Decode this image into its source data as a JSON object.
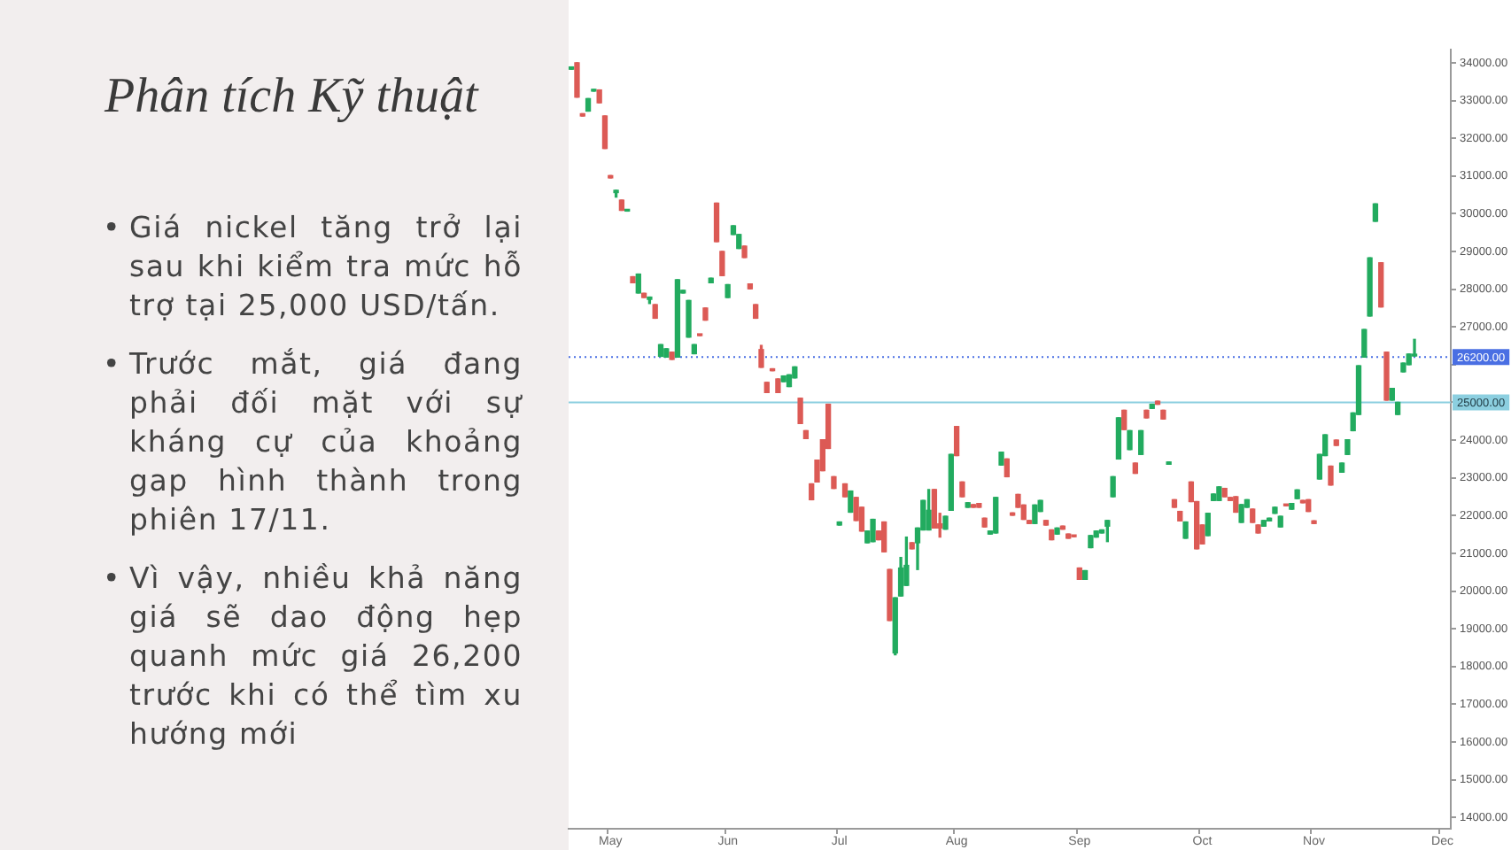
{
  "chart_data": {
    "type": "candlestick",
    "title": "Phân tích Kỹ thuật",
    "annotations": [
      "• Giá nickel tăng trở lại sau khi kiểm tra mức hỗ trợ tại 25,000 USD/tấn.",
      "• Trước mắt, giá đang phải đối mặt với sự kháng cự của khoảng gap hình thành trong phiên 17/11.",
      "• Vì vậy, nhiều khả năng giá sẽ dao động hẹp quanh mức giá 26,200 trước khi có thể tìm xu hướng mới"
    ],
    "categories": [
      null,
      null,
      null,
      null,
      null,
      null,
      null,
      "May",
      null,
      null,
      null,
      null,
      null,
      null,
      null,
      null,
      null,
      null,
      null,
      null,
      null,
      null,
      null,
      null,
      null,
      null,
      null,
      null,
      "Jun",
      null,
      null,
      null,
      null,
      null,
      null,
      null,
      null,
      null,
      null,
      null,
      null,
      null,
      null,
      null,
      null,
      null,
      null,
      null,
      "Jul",
      null,
      null,
      null,
      null,
      null,
      null,
      null,
      null,
      null,
      null,
      null,
      null,
      null,
      null,
      null,
      null,
      null,
      null,
      null,
      null,
      "Aug",
      null,
      null,
      null,
      null,
      null,
      null,
      null,
      null,
      null,
      null,
      null,
      null,
      null,
      null,
      null,
      null,
      null,
      null,
      null,
      null,
      null,
      "Sep",
      null,
      null,
      null,
      null,
      null,
      null,
      null,
      null,
      null,
      null,
      null,
      null,
      null,
      null,
      null,
      null,
      null,
      null,
      null,
      null,
      null,
      "Oct",
      null,
      null,
      null,
      null,
      null,
      null,
      null,
      null,
      null,
      null,
      null,
      null,
      null,
      null,
      null,
      null,
      null,
      null,
      null,
      "Nov",
      null,
      null,
      null,
      null,
      null,
      null,
      null,
      null,
      null,
      null,
      null,
      null,
      null,
      null,
      null,
      null,
      null,
      null,
      null,
      null,
      null,
      null,
      "Dec",
      null
    ],
    "ohlc": [
      [
        33830,
        33890,
        33830,
        33890
      ],
      [
        34000,
        34000,
        33090,
        33090
      ],
      [
        32650,
        32650,
        32590,
        32590
      ],
      [
        32720,
        33050,
        32720,
        33050
      ],
      [
        33250,
        33290,
        33250,
        33290
      ],
      [
        33280,
        33280,
        32940,
        32940
      ],
      [
        32590,
        32590,
        31730,
        31730
      ],
      [
        31010,
        31010,
        30950,
        30950
      ],
      [
        30560,
        30620,
        30440,
        30620
      ],
      [
        30360,
        30360,
        30090,
        30090
      ],
      [
        30070,
        30090,
        30070,
        30090
      ],
      [
        28330,
        28330,
        28170,
        28170
      ],
      [
        27900,
        28400,
        27900,
        28400
      ],
      [
        27890,
        27890,
        27780,
        27780
      ],
      [
        27730,
        27790,
        27620,
        27790
      ],
      [
        27590,
        27590,
        27230,
        27230
      ],
      [
        26220,
        26530,
        26220,
        26530
      ],
      [
        26200,
        26420,
        26200,
        26420
      ],
      [
        26330,
        26330,
        26140,
        26140
      ],
      [
        26200,
        28250,
        26200,
        28250
      ],
      [
        27900,
        27970,
        27900,
        27970
      ],
      [
        26730,
        27700,
        26730,
        27700
      ],
      [
        26290,
        26530,
        26290,
        26530
      ],
      [
        26800,
        26800,
        26770,
        26770
      ],
      [
        27500,
        27500,
        27180,
        27180
      ],
      [
        28170,
        28290,
        28170,
        28290
      ],
      [
        30280,
        30280,
        29260,
        29260
      ],
      [
        29000,
        29000,
        28360,
        28360
      ],
      [
        27780,
        28120,
        27780,
        28120
      ],
      [
        29450,
        29680,
        29450,
        29680
      ],
      [
        29080,
        29450,
        29080,
        29450
      ],
      [
        29140,
        29140,
        28840,
        28840
      ],
      [
        28140,
        28140,
        28010,
        28010
      ],
      [
        27590,
        27590,
        27230,
        27230
      ],
      [
        26400,
        26510,
        25930,
        25930
      ],
      [
        25530,
        25530,
        25260,
        25260
      ],
      [
        25890,
        25890,
        25840,
        25840
      ],
      [
        25620,
        25620,
        25260,
        25260
      ],
      [
        25550,
        25700,
        25550,
        25700
      ],
      [
        25420,
        25730,
        25420,
        25730
      ],
      [
        25650,
        25940,
        25650,
        25940
      ],
      [
        25110,
        25110,
        24440,
        24440
      ],
      [
        24250,
        24250,
        24040,
        24040
      ],
      [
        22840,
        22840,
        22420,
        22420
      ],
      [
        23470,
        23470,
        22890,
        22890
      ],
      [
        24010,
        24010,
        23190,
        23190
      ],
      [
        24950,
        24950,
        23780,
        23780
      ],
      [
        23030,
        23030,
        22720,
        22720
      ],
      [
        21750,
        21830,
        21750,
        21830
      ],
      [
        22840,
        22840,
        22500,
        22500
      ],
      [
        22090,
        22650,
        22090,
        22650
      ],
      [
        22480,
        22480,
        21870,
        21870
      ],
      [
        22220,
        22220,
        21590,
        21590
      ],
      [
        21280,
        21590,
        21280,
        21590
      ],
      [
        21310,
        21900,
        21310,
        21900
      ],
      [
        21590,
        21590,
        21360,
        21360
      ],
      [
        21830,
        21830,
        21040,
        21040
      ],
      [
        20570,
        20570,
        19220,
        19220
      ],
      [
        18360,
        19820,
        18310,
        19820
      ],
      [
        19870,
        20890,
        19870,
        20610
      ],
      [
        20150,
        21430,
        20150,
        20680
      ],
      [
        21280,
        21280,
        21120,
        21120
      ],
      [
        21280,
        21670,
        20570,
        21670
      ],
      [
        21620,
        22400,
        21620,
        22400
      ],
      [
        21620,
        22690,
        21620,
        22140
      ],
      [
        22690,
        22690,
        21670,
        21670
      ],
      [
        21780,
        22060,
        21430,
        21670
      ],
      [
        21640,
        21980,
        21640,
        21980
      ],
      [
        22140,
        23620,
        22140,
        23620
      ],
      [
        24360,
        24360,
        23590,
        23590
      ],
      [
        22890,
        22890,
        22500,
        22500
      ],
      [
        22220,
        22340,
        22220,
        22340
      ],
      [
        22290,
        22290,
        22220,
        22220
      ],
      [
        22320,
        22320,
        22220,
        22220
      ],
      [
        21930,
        21930,
        21700,
        21700
      ],
      [
        21510,
        21590,
        21510,
        21590
      ],
      [
        21540,
        22480,
        21540,
        22480
      ],
      [
        23340,
        23680,
        23340,
        23680
      ],
      [
        23500,
        23500,
        23030,
        23030
      ],
      [
        22070,
        22070,
        22010,
        22010
      ],
      [
        22560,
        22560,
        22220,
        22220
      ],
      [
        22280,
        22280,
        21900,
        21900
      ],
      [
        21870,
        21870,
        21790,
        21790
      ],
      [
        21790,
        22280,
        21790,
        22280
      ],
      [
        22110,
        22400,
        22110,
        22400
      ],
      [
        21870,
        21870,
        21750,
        21750
      ],
      [
        21620,
        21620,
        21360,
        21360
      ],
      [
        21510,
        21670,
        21510,
        21670
      ],
      [
        21720,
        21720,
        21640,
        21640
      ],
      [
        21510,
        21510,
        21400,
        21400
      ],
      [
        21460,
        21460,
        21440,
        21440
      ],
      [
        20610,
        20610,
        20310,
        20310
      ],
      [
        20310,
        20540,
        20310,
        20540
      ],
      [
        21150,
        21470,
        21150,
        21470
      ],
      [
        21430,
        21590,
        21430,
        21590
      ],
      [
        21540,
        21620,
        21540,
        21620
      ],
      [
        21720,
        21870,
        21310,
        21870
      ],
      [
        22500,
        23030,
        22500,
        23030
      ],
      [
        23500,
        24590,
        23500,
        24590
      ],
      [
        24790,
        24790,
        24280,
        24280
      ],
      [
        23750,
        24250,
        23750,
        24250
      ],
      [
        23390,
        23390,
        23120,
        23120
      ],
      [
        23620,
        24250,
        23620,
        24250
      ],
      [
        24790,
        24790,
        24590,
        24590
      ],
      [
        24840,
        24950,
        24840,
        24950
      ],
      [
        25030,
        25030,
        24950,
        24950
      ],
      [
        24790,
        24790,
        24560,
        24560
      ],
      [
        23360,
        23420,
        23360,
        23420
      ],
      [
        22420,
        22420,
        22220,
        22220
      ],
      [
        22110,
        22110,
        21860,
        21860
      ],
      [
        21400,
        21830,
        21400,
        21830
      ],
      [
        22890,
        22890,
        22370,
        22370
      ],
      [
        22370,
        22370,
        21120,
        21120
      ],
      [
        21750,
        21750,
        21250,
        21250
      ],
      [
        21470,
        22060,
        21470,
        22060
      ],
      [
        22400,
        22570,
        22400,
        22570
      ],
      [
        22400,
        22760,
        22400,
        22760
      ],
      [
        22720,
        22720,
        22500,
        22500
      ],
      [
        22480,
        22480,
        22400,
        22400
      ],
      [
        22500,
        22500,
        22090,
        22090
      ],
      [
        21820,
        22290,
        21820,
        22290
      ],
      [
        22220,
        22420,
        22220,
        22420
      ],
      [
        22170,
        22170,
        21820,
        21820
      ],
      [
        21750,
        21750,
        21540,
        21540
      ],
      [
        21720,
        21870,
        21720,
        21870
      ],
      [
        21860,
        21930,
        21860,
        21930
      ],
      [
        22060,
        22220,
        22060,
        22220
      ],
      [
        21700,
        21980,
        21700,
        21980
      ],
      [
        22290,
        22290,
        22260,
        22260
      ],
      [
        22170,
        22320,
        22170,
        22320
      ],
      [
        22450,
        22680,
        22450,
        22680
      ],
      [
        22400,
        22400,
        22340,
        22340
      ],
      [
        22420,
        22420,
        22110,
        22110
      ],
      [
        21860,
        21860,
        21790,
        21790
      ],
      [
        22970,
        23620,
        22970,
        23620
      ],
      [
        23590,
        24140,
        23590,
        24140
      ],
      [
        23310,
        23310,
        22810,
        22810
      ],
      [
        24000,
        24000,
        23860,
        23860
      ],
      [
        23150,
        23390,
        23150,
        23390
      ],
      [
        23620,
        24010,
        23620,
        24010
      ],
      [
        24250,
        24720,
        24250,
        24720
      ],
      [
        24680,
        25970,
        24680,
        25970
      ],
      [
        26200,
        26930,
        26200,
        26930
      ],
      [
        27290,
        28830,
        27290,
        28830
      ],
      [
        29800,
        30260,
        29800,
        30260
      ],
      [
        28700,
        28700,
        27530,
        27530
      ],
      [
        26330,
        26330,
        25060,
        25060
      ],
      [
        25060,
        25370,
        25060,
        25370
      ],
      [
        24680,
        25000,
        24680,
        25000
      ],
      [
        25810,
        26040,
        25810,
        26040
      ],
      [
        26000,
        26280,
        26000,
        26280
      ],
      [
        26230,
        26670,
        26230,
        26250
      ],
      null,
      null,
      null,
      null,
      null,
      null
    ],
    "colors": [
      "#22ab5f",
      "#dc5a55",
      "#dc5a55",
      "#22ab5f",
      "#22ab5f",
      "#dc5a55",
      "#dc5a55",
      "#dc5a55",
      "#22ab5f",
      "#dc5a55",
      "#22ab5f",
      "#dc5a55",
      "#22ab5f",
      "#dc5a55",
      "#22ab5f",
      "#dc5a55",
      "#22ab5f",
      "#22ab5f",
      "#dc5a55",
      "#22ab5f",
      "#22ab5f",
      "#22ab5f",
      "#22ab5f",
      "#dc5a55",
      "#dc5a55",
      "#22ab5f",
      "#dc5a55",
      "#dc5a55",
      "#22ab5f",
      "#22ab5f",
      "#22ab5f",
      "#dc5a55",
      "#dc5a55",
      "#dc5a55",
      "#dc5a55",
      "#dc5a55",
      "#dc5a55",
      "#dc5a55",
      "#22ab5f",
      "#22ab5f",
      "#22ab5f",
      "#dc5a55",
      "#dc5a55",
      "#dc5a55",
      "#dc5a55",
      "#dc5a55",
      "#dc5a55",
      "#dc5a55",
      "#22ab5f",
      "#dc5a55",
      "#22ab5f",
      "#dc5a55",
      "#dc5a55",
      "#22ab5f",
      "#22ab5f",
      "#dc5a55",
      "#dc5a55",
      "#dc5a55",
      "#22ab5f",
      "#22ab5f",
      "#22ab5f",
      "#dc5a55",
      "#22ab5f",
      "#22ab5f",
      "#22ab5f",
      "#dc5a55",
      "#dc5a55",
      "#22ab5f",
      "#22ab5f",
      "#dc5a55",
      "#dc5a55",
      "#22ab5f",
      "#dc5a55",
      "#dc5a55",
      "#dc5a55",
      "#22ab5f",
      "#22ab5f",
      "#22ab5f",
      "#dc5a55",
      "#dc5a55",
      "#dc5a55",
      "#dc5a55",
      "#dc5a55",
      "#22ab5f",
      "#22ab5f",
      "#dc5a55",
      "#dc5a55",
      "#22ab5f",
      "#dc5a55",
      "#dc5a55",
      "#dc5a55",
      "#dc5a55",
      "#22ab5f",
      "#22ab5f",
      "#22ab5f",
      "#22ab5f",
      "#22ab5f",
      "#22ab5f",
      "#22ab5f",
      "#dc5a55",
      "#22ab5f",
      "#dc5a55",
      "#22ab5f",
      "#dc5a55",
      "#22ab5f",
      "#dc5a55",
      "#dc5a55",
      "#22ab5f",
      "#dc5a55",
      "#dc5a55",
      "#22ab5f",
      "#dc5a55",
      "#dc5a55",
      "#dc5a55",
      "#22ab5f",
      "#22ab5f",
      "#22ab5f",
      "#dc5a55",
      "#dc5a55",
      "#dc5a55",
      "#22ab5f",
      "#22ab5f",
      "#dc5a55",
      "#dc5a55",
      "#22ab5f",
      "#22ab5f",
      "#22ab5f",
      "#22ab5f",
      "#dc5a55",
      "#22ab5f",
      "#22ab5f",
      "#dc5a55",
      "#dc5a55",
      "#dc5a55",
      "#22ab5f",
      "#22ab5f",
      "#dc5a55",
      "#dc5a55",
      "#22ab5f",
      "#22ab5f",
      "#22ab5f",
      "#22ab5f",
      "#22ab5f",
      "#22ab5f",
      "#22ab5f",
      "#dc5a55",
      "#dc5a55",
      "#22ab5f",
      "#22ab5f",
      "#22ab5f",
      "#22ab5f",
      "#22ab5f",
      null,
      null,
      null,
      null,
      null,
      null
    ],
    "ylim": [
      13700,
      34350
    ],
    "yticks": [
      {
        "value": 14000,
        "label": "14000.00"
      },
      {
        "value": 15000,
        "label": "15000.00"
      },
      {
        "value": 16000,
        "label": "16000.00"
      },
      {
        "value": 17000,
        "label": "17000.00"
      },
      {
        "value": 18000,
        "label": "18000.00"
      },
      {
        "value": 19000,
        "label": "19000.00"
      },
      {
        "value": 20000,
        "label": "20000.00"
      },
      {
        "value": 21000,
        "label": "21000.00"
      },
      {
        "value": 22000,
        "label": "22000.00"
      },
      {
        "value": 23000,
        "label": "23000.00"
      },
      {
        "value": 24000,
        "label": "24000.00"
      },
      {
        "value": 25000,
        "label": null
      },
      {
        "value": 26000,
        "label": null
      },
      {
        "value": 27000,
        "label": "27000.00"
      },
      {
        "value": 28000,
        "label": "28000.00"
      },
      {
        "value": 29000,
        "label": "29000.00"
      },
      {
        "value": 30000,
        "label": "30000.00"
      },
      {
        "value": 31000,
        "label": "31000.00"
      },
      {
        "value": 32000,
        "label": "32000.00"
      },
      {
        "value": 33000,
        "label": "33000.00"
      },
      {
        "value": 34000,
        "label": "34000.00"
      }
    ],
    "ref_lines": [
      {
        "axis": "y",
        "value": 26200,
        "label": "26200.00",
        "color": "#4a6fe3",
        "line_style": "dotted"
      },
      {
        "axis": "y",
        "value": 25000,
        "label": "25000.00",
        "color": "#8ccfe0",
        "line_style": "solid"
      }
    ]
  }
}
